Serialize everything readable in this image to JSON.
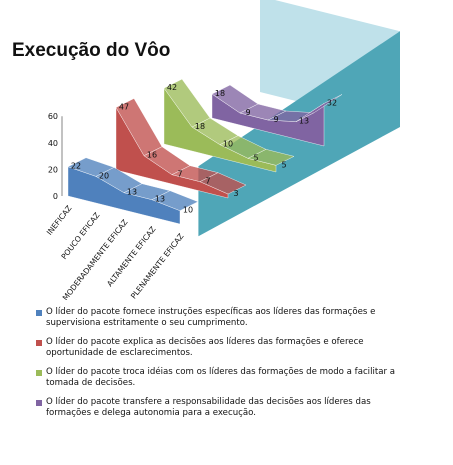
{
  "title": "Execução do Vôo",
  "colors": {
    "back_wall": "#bfe1ea",
    "side_wall": "#4fa6b7",
    "axis": "#333333"
  },
  "chart_data": {
    "type": "3d-line",
    "title": "Execução do Vôo",
    "categories": [
      "INEFICAZ",
      "POUCO EFICAZ",
      "MODERADAMENTE EFICAZ",
      "ALTAMENTE EFICAZ",
      "PLENAMENTE EFICAZ"
    ],
    "y_ticks": [
      "0",
      "20",
      "40",
      "60"
    ],
    "ylim": [
      0,
      60
    ],
    "grid": false,
    "legend_position": "bottom",
    "series": [
      {
        "label": "O líder do pacote fornece instruções específicas aos líderes das formações e supervisiona estritamente o seu cumprimento.",
        "values": [
          22,
          20,
          13,
          13,
          10
        ],
        "color": "#4f81bd"
      },
      {
        "label": "O líder do pacote explica as decisões aos líderes das formações e oferece oportunidade de esclarecimentos.",
        "values": [
          47,
          16,
          7,
          7,
          3
        ],
        "color": "#c0504d"
      },
      {
        "label": "O líder do pacote troca idéias com os líderes das formações de modo a facilitar a tomada de decisões.",
        "values": [
          42,
          18,
          10,
          5,
          5
        ],
        "color": "#9bbb59"
      },
      {
        "label": "O líder do pacote transfere a responsabilidade das decisões aos líderes das formações e delega autonomia para a execução.",
        "values": [
          18,
          9,
          9,
          13,
          32
        ],
        "color": "#8064a2"
      }
    ]
  }
}
